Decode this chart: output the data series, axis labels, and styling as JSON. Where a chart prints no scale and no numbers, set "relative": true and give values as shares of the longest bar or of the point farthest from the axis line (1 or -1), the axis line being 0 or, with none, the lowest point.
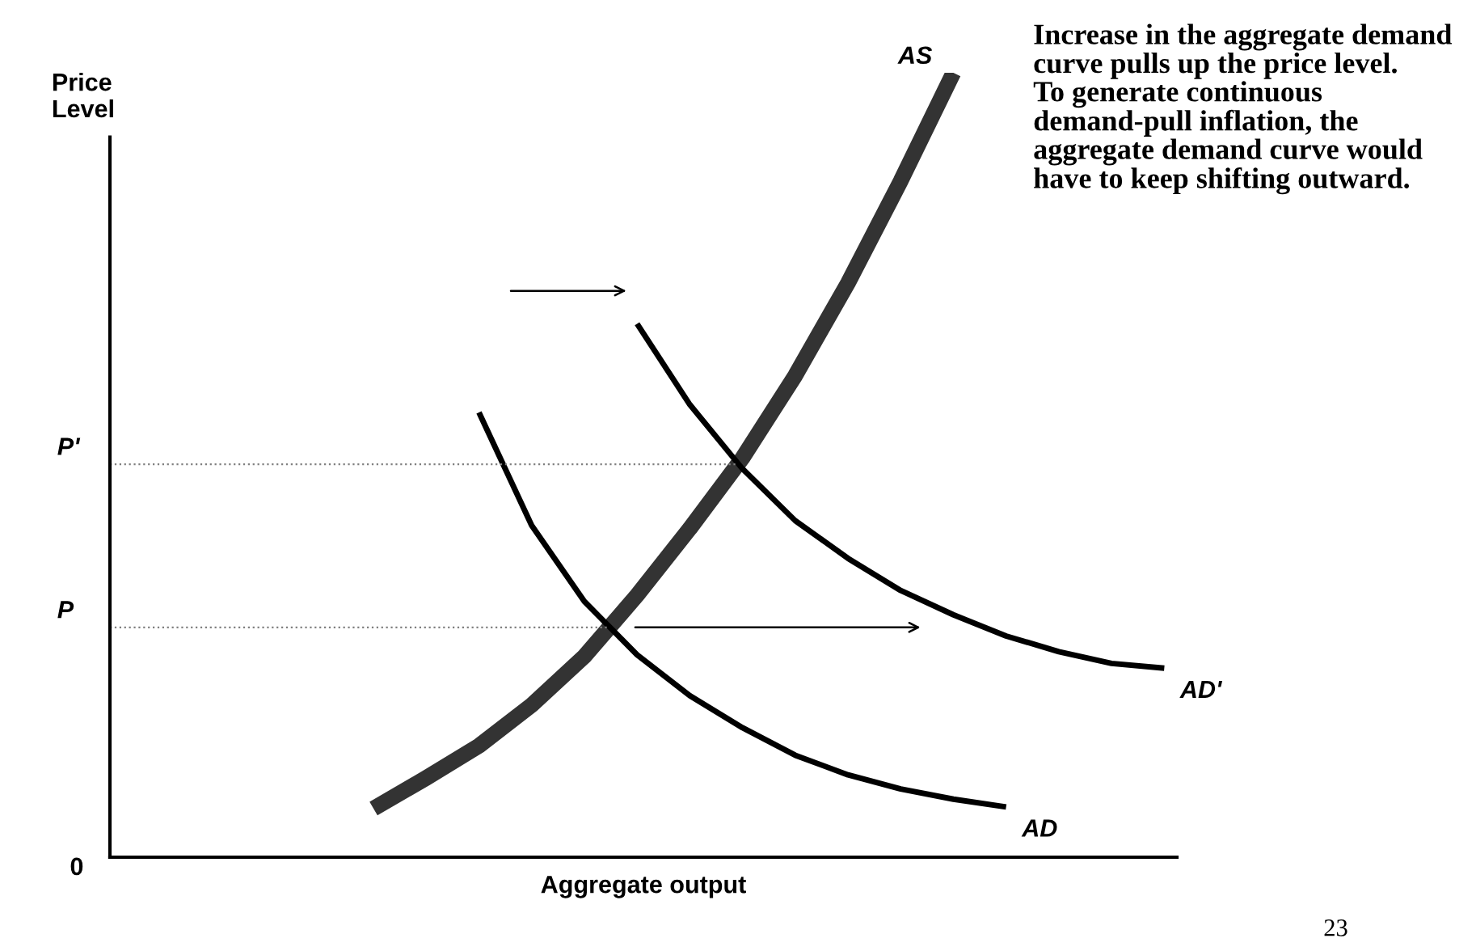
{
  "chart_data": {
    "type": "line",
    "relative": true,
    "xlabel": "Aggregate output",
    "ylabel": "Price\nLevel",
    "tick_labels": false,
    "legend": false,
    "marker": "none",
    "line_style": "solid",
    "categories": [
      null,
      null,
      null,
      null,
      null,
      null,
      null,
      null,
      null,
      null,
      null,
      null,
      null,
      null,
      null,
      null,
      null,
      null,
      null,
      null,
      null
    ],
    "series": [
      {
        "name": "AS",
        "color": "#333333",
        "values": [
          null,
          null,
          null,
          null,
          null,
          0.062,
          0.101,
          0.142,
          0.194,
          0.256,
          0.334,
          0.419,
          0.509,
          0.614,
          0.732,
          0.862,
          1,
          null,
          null,
          null,
          null
        ]
      },
      {
        "name": "AD",
        "color": "#000000",
        "values": [
          null,
          null,
          null,
          null,
          null,
          null,
          null,
          0.567,
          0.423,
          0.326,
          0.258,
          0.206,
          0.165,
          0.13,
          0.105,
          0.087,
          0.074,
          0.064,
          null,
          null,
          null
        ]
      },
      {
        "name": "AD'",
        "color": "#000000",
        "values": [
          null,
          null,
          null,
          null,
          null,
          null,
          null,
          null,
          null,
          null,
          0.68,
          0.577,
          0.495,
          0.429,
          0.381,
          0.34,
          0.309,
          0.282,
          0.262,
          0.247,
          0.241
        ]
      }
    ],
    "ref_lines": [
      {
        "axis": "y",
        "value": 0.501,
        "label": "P'",
        "color": "#808080",
        "line_style": "dotted"
      },
      {
        "axis": "y",
        "value": 0.293,
        "label": "P",
        "color": "#808080",
        "line_style": "dotted"
      }
    ],
    "annotations": [
      "0",
      "Increase in the aggregate demand curve pulls up the price level.\nTo generate continuous demand-pull inflation, the aggregate demand curve would have to keep shifting outward.",
      "23"
    ]
  }
}
